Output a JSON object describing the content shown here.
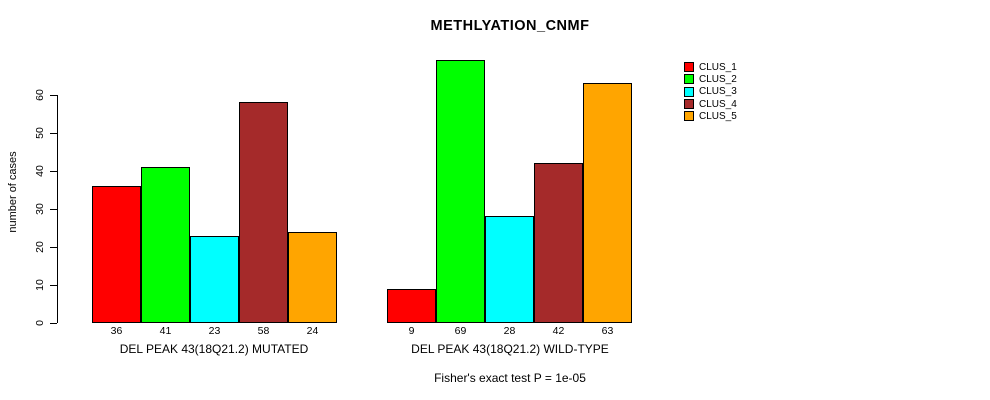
{
  "chart_data": {
    "type": "bar",
    "title": "METHLYATION_CNMF",
    "ylabel": "number of cases",
    "xlabel": "",
    "ylim": [
      0,
      60
    ],
    "yticks": [
      0,
      10,
      20,
      30,
      40,
      50,
      60
    ],
    "grid": false,
    "legend_position": "right",
    "legend": [
      "CLUS_1",
      "CLUS_2",
      "CLUS_3",
      "CLUS_4",
      "CLUS_5"
    ],
    "colors": [
      "#ff0000",
      "#00ff00",
      "#00ffff",
      "#a52a2a",
      "#ffa500"
    ],
    "groups": [
      {
        "label": "DEL PEAK 43(18Q21.2) MUTATED",
        "values": [
          36,
          41,
          23,
          58,
          24
        ]
      },
      {
        "label": "DEL PEAK 43(18Q21.2) WILD-TYPE",
        "values": [
          9,
          69,
          28,
          42,
          63
        ]
      }
    ],
    "footer": "Fisher's exact test P = 1e-05"
  }
}
